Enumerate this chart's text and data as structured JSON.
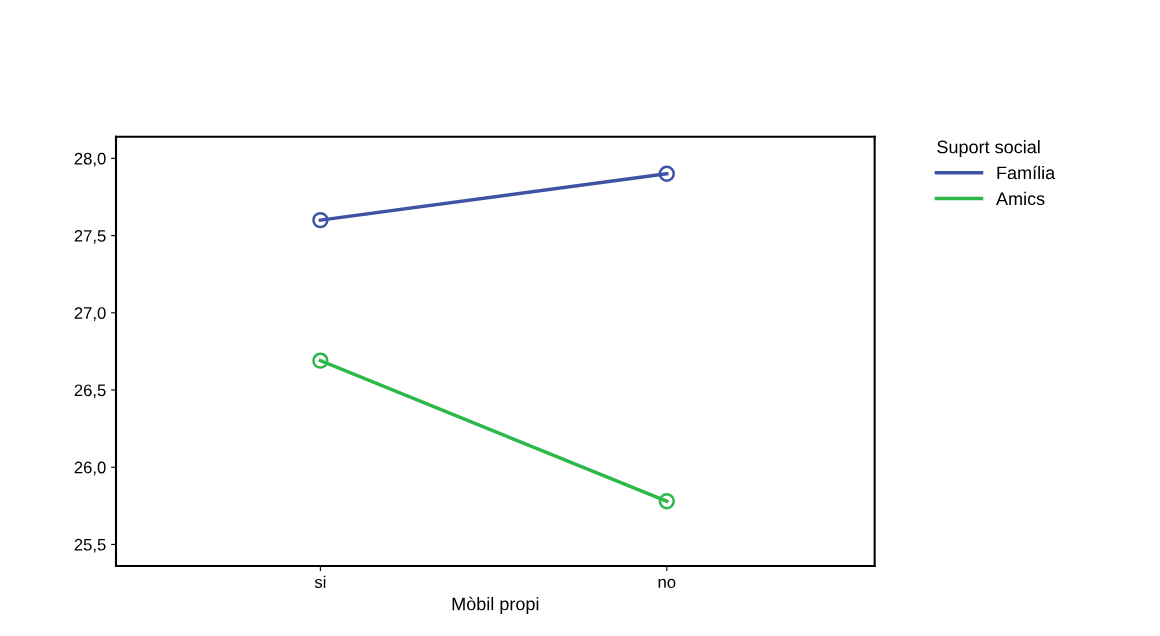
{
  "chart_data": {
    "type": "line",
    "xlabel": "Mòbil propi",
    "legend_title": "Suport social",
    "categories": [
      "si",
      "no"
    ],
    "series": [
      {
        "name": "Família",
        "color": "#3f53a4",
        "values": [
          27.6,
          27.9
        ]
      },
      {
        "name": "Amics",
        "color": "#2db84a",
        "values": [
          26.69,
          25.78
        ]
      }
    ],
    "ylim": [
      25.36,
      28.14
    ],
    "yticks": [
      {
        "value": 25.5,
        "label": "25,5"
      },
      {
        "value": 26.0,
        "label": "26,0"
      },
      {
        "value": 26.5,
        "label": "26,5"
      },
      {
        "value": 27.0,
        "label": "27,0"
      },
      {
        "value": 27.5,
        "label": "27,5"
      },
      {
        "value": 28.0,
        "label": "28,0"
      }
    ],
    "grid": false,
    "legend": "top right",
    "marker": "circle",
    "line_style": "solid"
  }
}
